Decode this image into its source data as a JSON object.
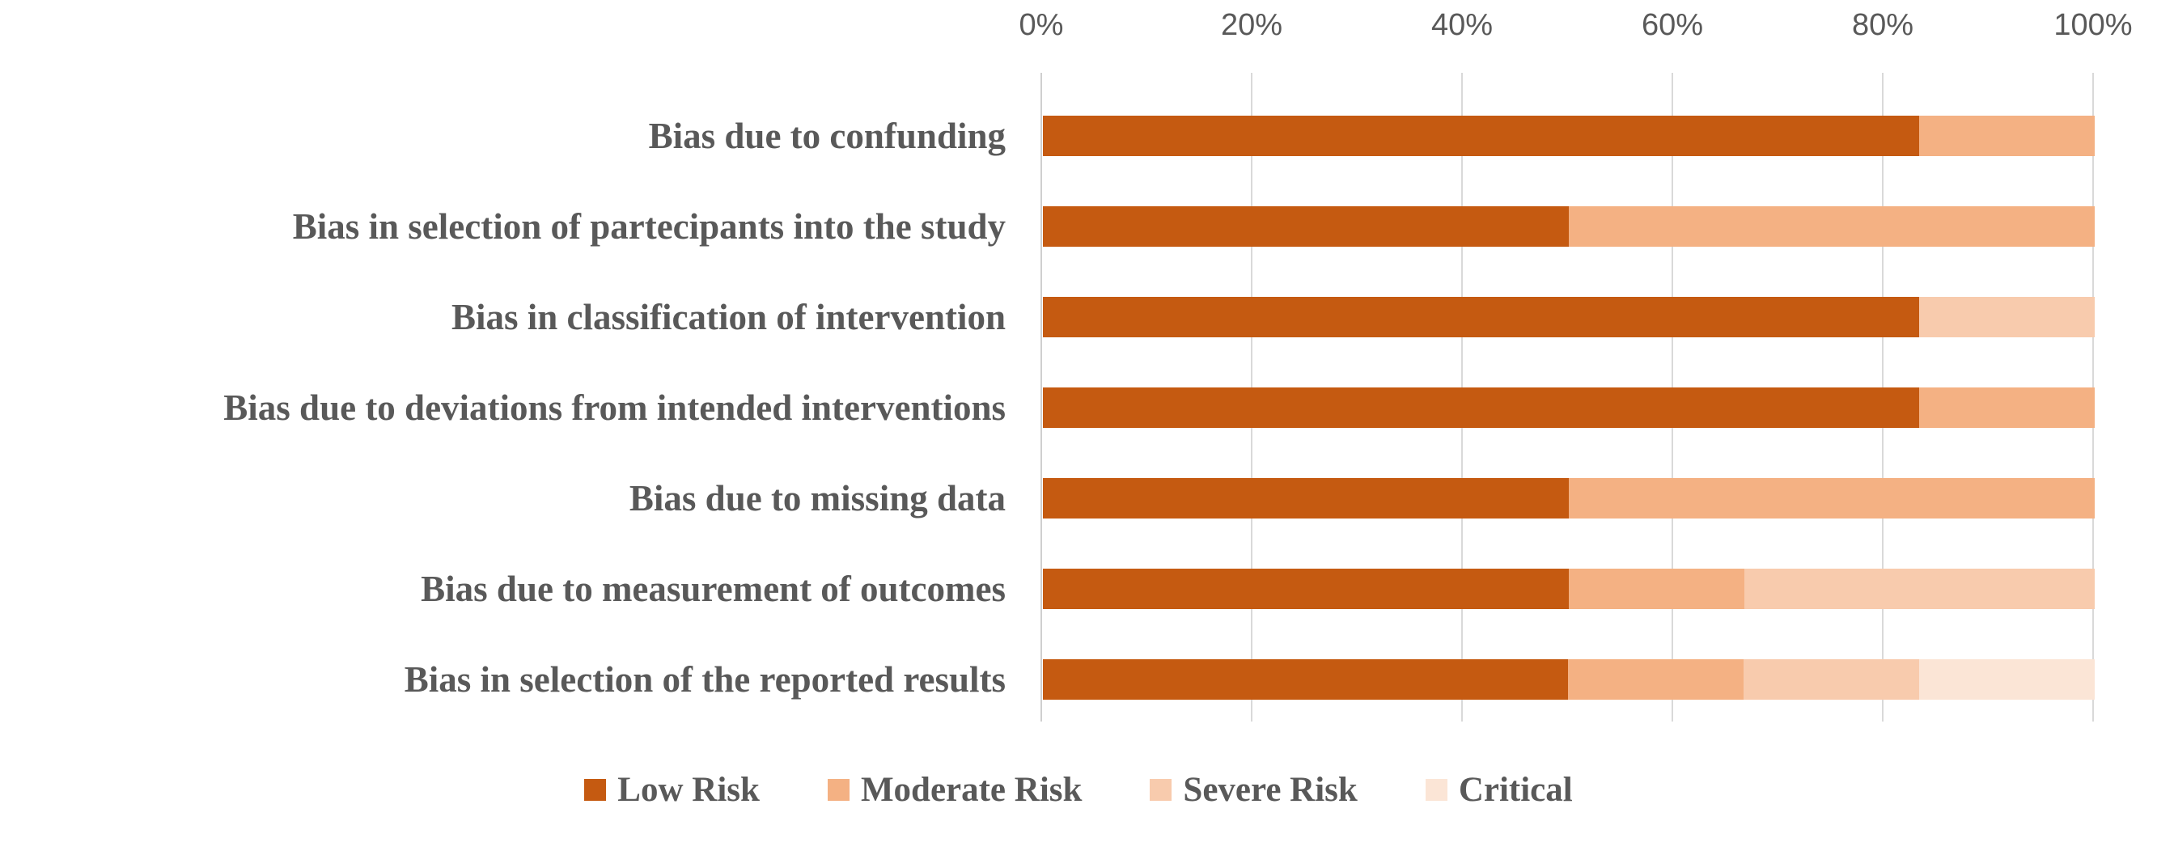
{
  "chart_data": {
    "type": "bar",
    "orientation": "horizontal",
    "stacked": true,
    "title": "",
    "xlabel": "",
    "ylabel": "",
    "xlim": [
      0,
      100
    ],
    "x_ticks": [
      "0%",
      "20%",
      "40%",
      "60%",
      "80%",
      "100%"
    ],
    "grid": "vertical-gridlines-on",
    "legend_position": "bottom-center",
    "categories": [
      "Bias due to confunding",
      "Bias in selection of partecipants into the study",
      "Bias in classification of intervention",
      "Bias due to deviations from intended interventions",
      "Bias due to missing data",
      "Bias due to measurement of outcomes",
      "Bias in selection of the reported results"
    ],
    "series": [
      {
        "name": "Low Risk",
        "color": "#C55A11",
        "values": [
          83.3,
          50.0,
          83.3,
          83.3,
          50.0,
          50.0,
          50.0
        ]
      },
      {
        "name": "Moderate Risk",
        "color": "#F4B183",
        "values": [
          16.7,
          50.0,
          0.0,
          16.7,
          50.0,
          16.7,
          16.7
        ]
      },
      {
        "name": "Severe Risk",
        "color": "#F8CBAD",
        "values": [
          0.0,
          0.0,
          16.7,
          0.0,
          0.0,
          33.3,
          16.7
        ]
      },
      {
        "name": "Critical",
        "color": "#FBE5D6",
        "values": [
          0.0,
          0.0,
          0.0,
          0.0,
          0.0,
          0.0,
          16.7
        ]
      }
    ],
    "colors": {
      "axis_text": "#595959",
      "category_text": "#595959",
      "legend_text": "#595959",
      "gridline": "#D9D9D9",
      "background": "#FFFFFF"
    }
  }
}
